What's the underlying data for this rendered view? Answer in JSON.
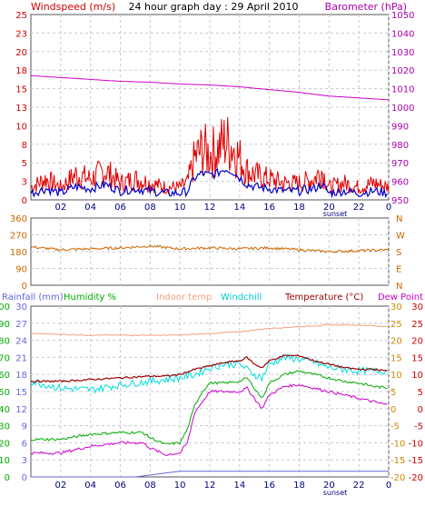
{
  "header": {
    "left": "Windspeed (m/s)",
    "center": "24 hour graph day : 29 April 2010",
    "right": "Barometer (hPa)"
  },
  "footer": {
    "sunset1": "sunset",
    "sunset2": "sunset"
  },
  "colors": {
    "grid": "#c8c8d8",
    "wind_red": "#e00000",
    "wind_blue": "#0000cc",
    "baro": "#cc00cc",
    "dir": "#cc6600",
    "humidity": "#00aa00",
    "indoor": "#f4a080",
    "windchill": "#00dddd",
    "temperature": "#990000",
    "dewpoint": "#cc00cc",
    "rainfall": "#6666dd",
    "left_axis": "#cc0000",
    "axis_purple": "#aa00aa",
    "dir_axis": "#cc6600",
    "green_axis": "#00aa00",
    "rain_axis": "#6666dd",
    "temp_axis": "#cc0000"
  },
  "chart_data": [
    {
      "type": "line",
      "title": "24 hour graph day : 29 April 2010",
      "ylabel": "Windspeed (m/s)",
      "y2label": "Barometer (hPa)",
      "xticks": [
        "02",
        "04",
        "06",
        "08",
        "10",
        "12",
        "14",
        "16",
        "18",
        "20",
        "22",
        "0"
      ],
      "yticks": [
        "0",
        "3",
        "5",
        "8",
        "10",
        "13",
        "15",
        "18",
        "20",
        "23",
        "25"
      ],
      "y2ticks": [
        "950",
        "960",
        "970",
        "980",
        "990",
        "1000",
        "1010",
        "1020",
        "1030",
        "1040",
        "1050"
      ],
      "ylim": [
        0,
        25
      ],
      "y2lim": [
        950,
        1050
      ],
      "series": [
        {
          "name": "Windspeed (m/s)",
          "x": [
            0,
            1,
            2,
            3,
            4,
            5,
            6,
            7,
            8,
            9,
            10,
            10.5,
            11,
            11.5,
            12,
            12.5,
            13,
            13.5,
            14,
            14.5,
            15,
            16,
            17,
            18,
            19,
            19.5,
            20,
            21,
            22,
            23,
            24
          ],
          "values": [
            1.5,
            2.5,
            1.5,
            3,
            2.5,
            3.5,
            2,
            2.5,
            2,
            1.5,
            1.5,
            2,
            5,
            6,
            5.5,
            6,
            7,
            6.5,
            5,
            3.5,
            3,
            2.5,
            2,
            2,
            2.5,
            3.5,
            1.5,
            2,
            1.5,
            2,
            1.5
          ]
        },
        {
          "name": "Barometer (hPa)",
          "x": [
            0,
            2,
            4,
            6,
            8,
            10,
            12,
            14,
            16,
            18,
            20,
            22,
            24
          ],
          "values": [
            1017,
            1016,
            1015,
            1014,
            1013.5,
            1012.5,
            1012,
            1011,
            1009.5,
            1008,
            1006,
            1005,
            1004
          ]
        }
      ]
    },
    {
      "type": "line",
      "yticks": [
        "360",
        "270",
        "180",
        "90",
        "0"
      ],
      "y2ticks": [
        "N",
        "W",
        "S",
        "E",
        "N"
      ],
      "ylim": [
        0,
        360
      ],
      "xlim": [
        0,
        24
      ],
      "series": [
        {
          "name": "Wind direction",
          "x": [
            0,
            2,
            4,
            6,
            8,
            10,
            12,
            14,
            16,
            18,
            20,
            22,
            24
          ],
          "values": [
            205,
            190,
            195,
            200,
            210,
            195,
            200,
            195,
            200,
            190,
            180,
            185,
            190
          ]
        }
      ]
    },
    {
      "type": "line",
      "legend": [
        "Rainfall (mm)",
        "Humidity %",
        "Indoor temp",
        "Windchill",
        "Temperature (°C)",
        "Dew Point"
      ],
      "xticks": [
        "02",
        "04",
        "06",
        "08",
        "10",
        "12",
        "14",
        "16",
        "18",
        "20",
        "22",
        "0"
      ],
      "ylim": [
        -20,
        30
      ],
      "hum_ticks": [
        "0",
        "10",
        "20",
        "30",
        "40",
        "50",
        "60",
        "70",
        "80",
        "90",
        "100"
      ],
      "rain_ticks": [
        "0",
        "3",
        "6",
        "9",
        "12",
        "15",
        "18",
        "21",
        "24",
        "27",
        "30"
      ],
      "temp_ticks_left": [
        "-20",
        "-15",
        "-10",
        "-5",
        "0",
        "5",
        "10",
        "15",
        "20",
        "25",
        "30"
      ],
      "temp_ticks_right": [
        "-20",
        "-15",
        "-10",
        "-5",
        "0",
        "5",
        "10",
        "15",
        "20",
        "25",
        "30"
      ],
      "series": [
        {
          "name": "Indoor temp",
          "x": [
            0,
            4,
            8,
            10,
            12,
            14,
            16,
            18,
            20,
            22,
            24
          ],
          "values": [
            22,
            21.5,
            21.5,
            21.5,
            22,
            22.5,
            23.5,
            24,
            24.5,
            24.5,
            24
          ]
        },
        {
          "name": "Temperature (°C)",
          "x": [
            0,
            2,
            4,
            6,
            8,
            9,
            10,
            11,
            12,
            13,
            14,
            14.5,
            15,
            15.5,
            16,
            17,
            18,
            19,
            20,
            21,
            22,
            23,
            24
          ],
          "values": [
            8,
            8,
            8.5,
            9,
            9.5,
            9.5,
            10,
            11.5,
            12.5,
            13.5,
            14,
            15,
            13,
            12,
            14,
            15.5,
            15.5,
            14,
            13,
            12,
            11.5,
            11.5,
            11
          ]
        },
        {
          "name": "Windchill",
          "x": [
            0,
            2,
            4,
            6,
            8,
            10,
            11,
            12,
            13,
            14,
            15,
            15.5,
            16,
            17,
            18,
            19,
            20,
            21,
            22,
            23,
            24
          ],
          "values": [
            8,
            6,
            5.5,
            7,
            8,
            9,
            10,
            12,
            13,
            13,
            10,
            9,
            13,
            15,
            14.5,
            13.5,
            12,
            11.5,
            11,
            11,
            11
          ]
        },
        {
          "name": "Dew Point",
          "x": [
            0,
            2,
            4,
            6,
            7.5,
            8,
            9,
            10,
            10.5,
            11,
            11.5,
            12,
            13,
            14,
            14.5,
            15,
            15.5,
            16,
            17,
            18,
            19,
            20,
            21,
            22,
            23,
            24
          ],
          "values": [
            -13,
            -13,
            -11,
            -10,
            -10,
            -11.5,
            -13.5,
            -13,
            -10,
            -1,
            2,
            5,
            5,
            5,
            6,
            3,
            0,
            4,
            6.5,
            7,
            6,
            5,
            4,
            3,
            2,
            1
          ]
        }
      ]
    }
  ]
}
